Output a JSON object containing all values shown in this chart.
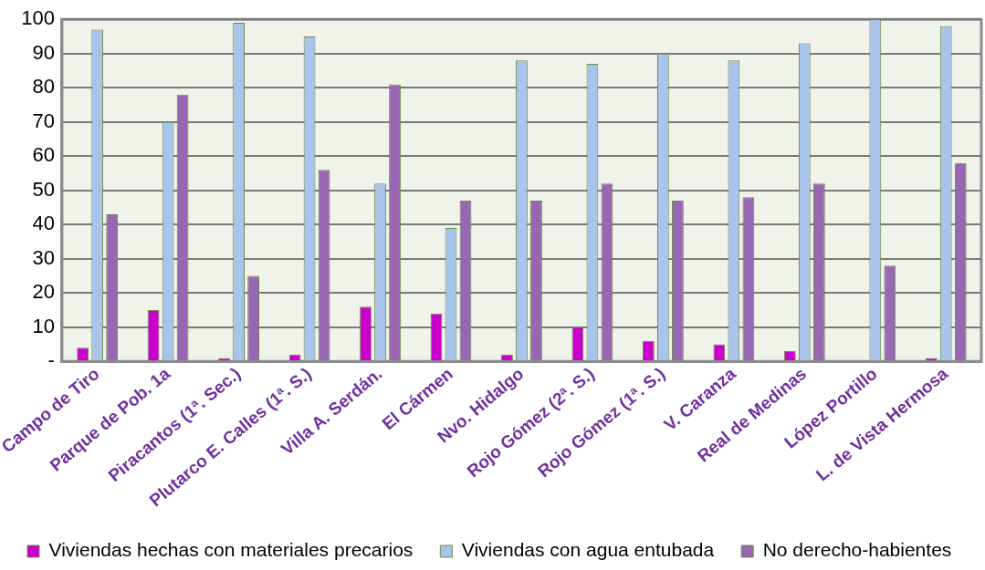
{
  "chart_data": {
    "type": "bar",
    "categories": [
      "Campo de Tiro",
      "Parque de Pob. 1a",
      "Piracantos (1ª. Sec.)",
      "Plutarco E. Calles (1ª. S.)",
      "Villa A. Serdán.",
      "El Cármen",
      "Nvo. Hidalgo",
      "Rojo Gómez (2ª. S.)",
      "Rojo Gómez (1ª. S.)",
      "V. Caranza",
      "Real de Medinas",
      "López Portillo",
      "L. de Vista Hermosa"
    ],
    "series": [
      {
        "name": "Viviendas hechas con materiales precarios",
        "color": "#cc00cc",
        "values": [
          4,
          15,
          1,
          2,
          16,
          14,
          2,
          10,
          6,
          5,
          3,
          0,
          1
        ]
      },
      {
        "name": "Viviendas con agua entubada",
        "color": "#a9c4eb",
        "values": [
          97,
          70,
          99,
          95,
          52,
          39,
          88,
          87,
          90,
          88,
          93,
          100,
          98
        ]
      },
      {
        "name": "No derecho-habientes",
        "color": "#9966b3",
        "values": [
          43,
          78,
          25,
          56,
          81,
          47,
          47,
          52,
          47,
          48,
          52,
          28,
          58
        ]
      }
    ],
    "ylim": [
      0,
      100
    ],
    "yticks": [
      {
        "value": 0,
        "label": "-"
      },
      10,
      20,
      30,
      40,
      50,
      60,
      70,
      80,
      90,
      100
    ],
    "grid": "y",
    "legend": "bottom"
  }
}
